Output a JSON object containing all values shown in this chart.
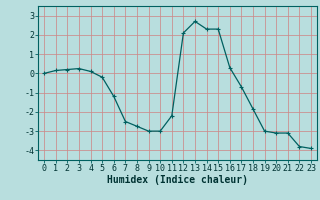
{
  "title": "",
  "xlabel": "Humidex (Indice chaleur)",
  "ylabel": "",
  "bg_color": "#b8dede",
  "grid_color": "#cc8888",
  "line_color": "#006060",
  "marker_color": "#006060",
  "xlim": [
    -0.5,
    23.5
  ],
  "ylim": [
    -4.5,
    3.5
  ],
  "yticks": [
    3,
    2,
    1,
    0,
    -1,
    -2,
    -3,
    -4
  ],
  "xticks": [
    0,
    1,
    2,
    3,
    4,
    5,
    6,
    7,
    8,
    9,
    10,
    11,
    12,
    13,
    14,
    15,
    16,
    17,
    18,
    19,
    20,
    21,
    22,
    23
  ],
  "x": [
    0,
    1,
    2,
    3,
    4,
    5,
    6,
    7,
    8,
    9,
    10,
    11,
    12,
    13,
    14,
    15,
    16,
    17,
    18,
    19,
    20,
    21,
    22,
    23
  ],
  "y": [
    0.0,
    0.15,
    0.2,
    0.25,
    0.1,
    -0.2,
    -1.2,
    -2.5,
    -2.75,
    -3.0,
    -3.0,
    -2.2,
    2.1,
    2.7,
    2.3,
    2.3,
    0.3,
    -0.7,
    -1.85,
    -3.0,
    -3.1,
    -3.1,
    -3.8,
    -3.9
  ],
  "font_color": "#003333",
  "tick_fontsize": 6,
  "label_fontsize": 7
}
